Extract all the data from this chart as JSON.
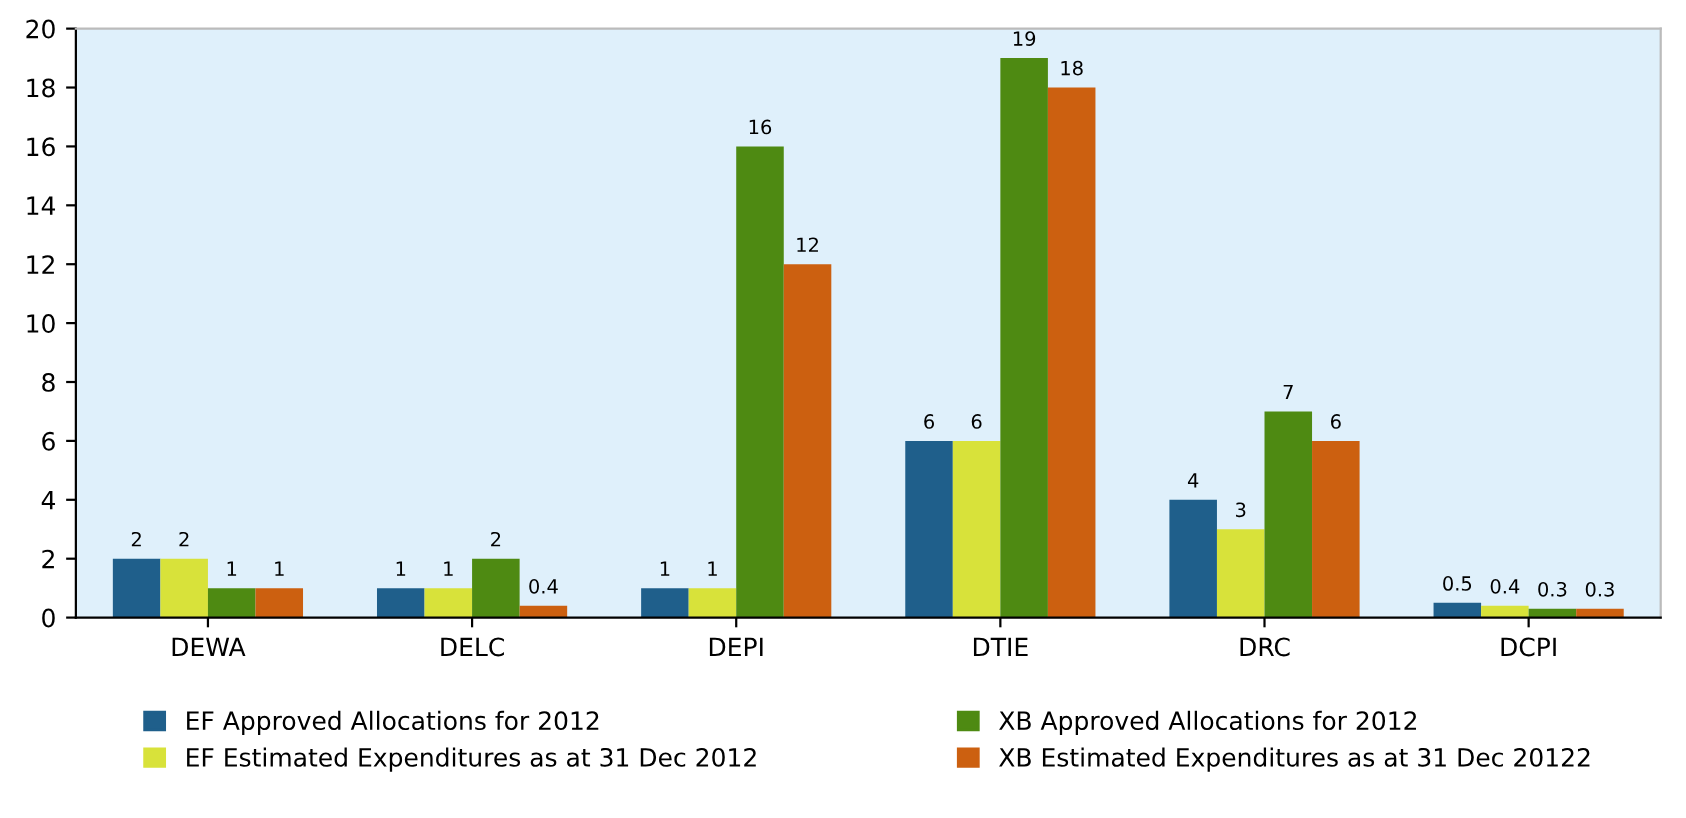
{
  "chart_data": {
    "type": "bar",
    "categories": [
      "DEWA",
      "DELC",
      "DEPI",
      "DTIE",
      "DRC",
      "DCPI"
    ],
    "series": [
      {
        "name": "EF Approved Allocations for 2012",
        "color": "#1f5f8b",
        "values": [
          2,
          1,
          1,
          6,
          4,
          0.5
        ]
      },
      {
        "name": "EF Estimated Expenditures as at 31 Dec 2012",
        "color": "#d8e23a",
        "values": [
          2,
          1,
          1,
          6,
          3,
          0.4
        ]
      },
      {
        "name": "XB Approved Allocations for 2012",
        "color": "#4e8a12",
        "values": [
          1,
          2,
          16,
          19,
          7,
          0.3
        ]
      },
      {
        "name": "XB Estimated Expenditures as at 31 Dec 20122",
        "color": "#cc6010",
        "values": [
          1,
          0.4,
          12,
          18,
          6,
          0.3
        ]
      }
    ],
    "ylim": [
      0,
      20
    ],
    "yticks": [
      0,
      2,
      4,
      6,
      8,
      10,
      12,
      14,
      16,
      18,
      20
    ],
    "data_labels": true,
    "legend": "bottom",
    "grid": false
  }
}
